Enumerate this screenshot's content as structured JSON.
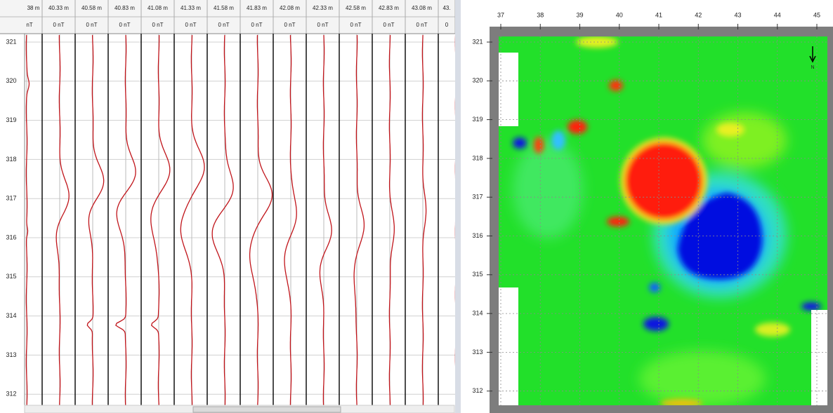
{
  "left_panel": {
    "columns": [
      {
        "distance": "38 m",
        "unit": "nT"
      },
      {
        "distance": "40.33 m",
        "unit": "0 nT"
      },
      {
        "distance": "40.58 m",
        "unit": "0 nT"
      },
      {
        "distance": "40.83 m",
        "unit": "0 nT"
      },
      {
        "distance": "41.08 m",
        "unit": "0 nT"
      },
      {
        "distance": "41.33 m",
        "unit": "0 nT"
      },
      {
        "distance": "41.58 m",
        "unit": "0 nT"
      },
      {
        "distance": "41.83 m",
        "unit": "0 nT"
      },
      {
        "distance": "42.08 m",
        "unit": "0 nT"
      },
      {
        "distance": "42.33 m",
        "unit": "0 nT"
      },
      {
        "distance": "42.58 m",
        "unit": "0 nT"
      },
      {
        "distance": "42.83 m",
        "unit": "0 nT"
      },
      {
        "distance": "43.08 m",
        "unit": "0 nT"
      },
      {
        "distance": "43.",
        "unit": "0"
      }
    ],
    "y_labels": [
      "321",
      "320",
      "319",
      "318",
      "317",
      "316",
      "315",
      "314",
      "313",
      "312"
    ]
  },
  "right_panel": {
    "x_labels": [
      "37",
      "38",
      "39",
      "40",
      "41",
      "42",
      "43",
      "44",
      "45"
    ],
    "y_labels": [
      "321",
      "320",
      "319",
      "318",
      "317",
      "316",
      "315",
      "314",
      "313",
      "312"
    ],
    "north": "N"
  }
}
